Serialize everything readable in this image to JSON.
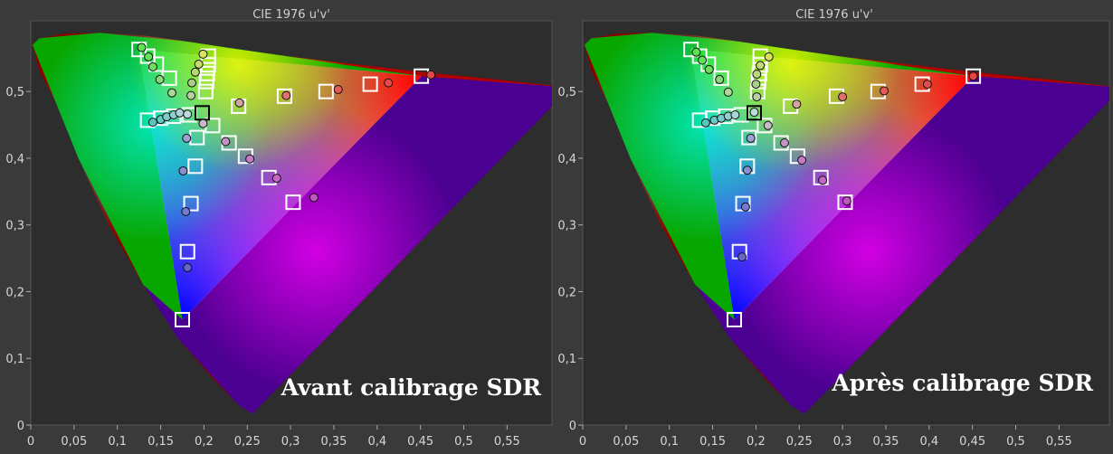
{
  "colors": {
    "background": "#3a3a3a",
    "plot_background": "#2d2d2d",
    "text": "#d6d6d6",
    "target_marker": "#ffffff",
    "white_point_marker": "#000000",
    "red": "#ff0000",
    "green": "#00cc00",
    "blue": "#0000ff",
    "magenta": "#ff00ff",
    "cyan": "#00ffff",
    "yellow": "#ffff00"
  },
  "chart_data": [
    {
      "type": "scatter",
      "title": "CIE 1976 u'v'",
      "overlay_label": "Avant calibrage SDR",
      "xlim": [
        0,
        0.6
      ],
      "ylim": [
        0,
        0.6
      ],
      "x_ticks": [
        0,
        0.05,
        0.1,
        0.15,
        0.2,
        0.25,
        0.3,
        0.35,
        0.4,
        0.45,
        0.5,
        0.55
      ],
      "x_tick_labels": [
        "0",
        "0,05",
        "0,1",
        "0,15",
        "0,2",
        "0,25",
        "0,3",
        "0,35",
        "0,4",
        "0,45",
        "0,5",
        "0,55"
      ],
      "y_ticks": [
        0,
        0.1,
        0.2,
        0.3,
        0.4,
        0.5
      ],
      "y_tick_labels": [
        "0",
        "0,1",
        "0,2",
        "0,3",
        "0,4",
        "0,5"
      ],
      "grid": false,
      "gamut_triangle": {
        "red": [
          0.451,
          0.523
        ],
        "green": [
          0.125,
          0.563
        ],
        "blue": [
          0.175,
          0.158
        ]
      },
      "white_point": [
        0.198,
        0.468
      ],
      "targets": [
        [
          0.125,
          0.563
        ],
        [
          0.135,
          0.553
        ],
        [
          0.145,
          0.541
        ],
        [
          0.16,
          0.52
        ],
        [
          0.205,
          0.553
        ],
        [
          0.205,
          0.54
        ],
        [
          0.204,
          0.527
        ],
        [
          0.203,
          0.515
        ],
        [
          0.202,
          0.5
        ],
        [
          0.24,
          0.478
        ],
        [
          0.293,
          0.493
        ],
        [
          0.341,
          0.5
        ],
        [
          0.392,
          0.511
        ],
        [
          0.451,
          0.523
        ],
        [
          0.135,
          0.457
        ],
        [
          0.15,
          0.46
        ],
        [
          0.165,
          0.463
        ],
        [
          0.183,
          0.465
        ],
        [
          0.21,
          0.449
        ],
        [
          0.229,
          0.423
        ],
        [
          0.248,
          0.403
        ],
        [
          0.275,
          0.371
        ],
        [
          0.303,
          0.334
        ],
        [
          0.192,
          0.431
        ],
        [
          0.19,
          0.388
        ],
        [
          0.185,
          0.332
        ],
        [
          0.181,
          0.26
        ],
        [
          0.175,
          0.158
        ]
      ],
      "measured": [
        {
          "x": 0.128,
          "y": 0.566,
          "color": "#5de34f"
        },
        {
          "x": 0.136,
          "y": 0.552,
          "color": "#62e258"
        },
        {
          "x": 0.141,
          "y": 0.537,
          "color": "#6fdc62"
        },
        {
          "x": 0.149,
          "y": 0.518,
          "color": "#86d87c"
        },
        {
          "x": 0.199,
          "y": 0.556,
          "color": "#d8e55b"
        },
        {
          "x": 0.194,
          "y": 0.541,
          "color": "#c4dc6e"
        },
        {
          "x": 0.19,
          "y": 0.529,
          "color": "#b6d677"
        },
        {
          "x": 0.186,
          "y": 0.513,
          "color": "#a9cd85"
        },
        {
          "x": 0.185,
          "y": 0.494,
          "color": "#b9cfa3"
        },
        {
          "x": 0.163,
          "y": 0.498,
          "color": "#a8d992"
        },
        {
          "x": 0.241,
          "y": 0.483,
          "color": "#d4a59a"
        },
        {
          "x": 0.295,
          "y": 0.494,
          "color": "#e0716f"
        },
        {
          "x": 0.355,
          "y": 0.503,
          "color": "#e45a59"
        },
        {
          "x": 0.413,
          "y": 0.513,
          "color": "#e24c4c"
        },
        {
          "x": 0.462,
          "y": 0.525,
          "color": "#e04747"
        },
        {
          "x": 0.141,
          "y": 0.454,
          "color": "#58c6bd"
        },
        {
          "x": 0.15,
          "y": 0.458,
          "color": "#6ac8c3"
        },
        {
          "x": 0.157,
          "y": 0.462,
          "color": "#7acbc8"
        },
        {
          "x": 0.165,
          "y": 0.465,
          "color": "#8ed0cf"
        },
        {
          "x": 0.172,
          "y": 0.468,
          "color": "#a6d6d5"
        },
        {
          "x": 0.181,
          "y": 0.466,
          "color": "#bcdbdb"
        },
        {
          "x": 0.199,
          "y": 0.452,
          "color": "#c8b9c8"
        },
        {
          "x": 0.225,
          "y": 0.425,
          "color": "#c691c6"
        },
        {
          "x": 0.253,
          "y": 0.399,
          "color": "#c77ac7"
        },
        {
          "x": 0.284,
          "y": 0.37,
          "color": "#c766c7"
        },
        {
          "x": 0.327,
          "y": 0.341,
          "color": "#c454c4"
        },
        {
          "x": 0.18,
          "y": 0.43,
          "color": "#9ca0d2"
        },
        {
          "x": 0.176,
          "y": 0.381,
          "color": "#8a8ed2"
        },
        {
          "x": 0.179,
          "y": 0.32,
          "color": "#7779cd"
        },
        {
          "x": 0.181,
          "y": 0.236,
          "color": "#6466c8"
        }
      ]
    },
    {
      "type": "scatter",
      "title": "CIE 1976 u'v'",
      "overlay_label": "Après calibrage SDR",
      "xlim": [
        0,
        0.6
      ],
      "ylim": [
        0,
        0.6
      ],
      "x_ticks": [
        0,
        0.05,
        0.1,
        0.15,
        0.2,
        0.25,
        0.3,
        0.35,
        0.4,
        0.45,
        0.5,
        0.55
      ],
      "x_tick_labels": [
        "0",
        "0,05",
        "0,1",
        "0,15",
        "0,2",
        "0,25",
        "0,3",
        "0,35",
        "0,4",
        "0,45",
        "0,5",
        "0,55"
      ],
      "y_ticks": [
        0,
        0.1,
        0.2,
        0.3,
        0.4,
        0.5
      ],
      "y_tick_labels": [
        "0",
        "0,1",
        "0,2",
        "0,3",
        "0,4",
        "0,5"
      ],
      "grid": false,
      "gamut_triangle": {
        "red": [
          0.451,
          0.523
        ],
        "green": [
          0.125,
          0.563
        ],
        "blue": [
          0.175,
          0.158
        ]
      },
      "white_point": [
        0.198,
        0.468
      ],
      "targets": [
        [
          0.125,
          0.563
        ],
        [
          0.135,
          0.553
        ],
        [
          0.145,
          0.541
        ],
        [
          0.16,
          0.52
        ],
        [
          0.205,
          0.553
        ],
        [
          0.205,
          0.54
        ],
        [
          0.204,
          0.527
        ],
        [
          0.203,
          0.515
        ],
        [
          0.202,
          0.5
        ],
        [
          0.24,
          0.478
        ],
        [
          0.293,
          0.493
        ],
        [
          0.341,
          0.5
        ],
        [
          0.392,
          0.511
        ],
        [
          0.451,
          0.523
        ],
        [
          0.135,
          0.457
        ],
        [
          0.15,
          0.46
        ],
        [
          0.165,
          0.463
        ],
        [
          0.183,
          0.465
        ],
        [
          0.21,
          0.449
        ],
        [
          0.229,
          0.423
        ],
        [
          0.248,
          0.403
        ],
        [
          0.275,
          0.371
        ],
        [
          0.303,
          0.334
        ],
        [
          0.192,
          0.431
        ],
        [
          0.19,
          0.388
        ],
        [
          0.185,
          0.332
        ],
        [
          0.181,
          0.26
        ],
        [
          0.175,
          0.158
        ]
      ],
      "measured": [
        {
          "x": 0.131,
          "y": 0.559,
          "color": "#5de34f"
        },
        {
          "x": 0.138,
          "y": 0.547,
          "color": "#62e258"
        },
        {
          "x": 0.146,
          "y": 0.533,
          "color": "#6fdc62"
        },
        {
          "x": 0.158,
          "y": 0.518,
          "color": "#86d87c"
        },
        {
          "x": 0.215,
          "y": 0.552,
          "color": "#d8e55b"
        },
        {
          "x": 0.205,
          "y": 0.539,
          "color": "#c4dc6e"
        },
        {
          "x": 0.201,
          "y": 0.526,
          "color": "#b6d677"
        },
        {
          "x": 0.2,
          "y": 0.511,
          "color": "#a9cd85"
        },
        {
          "x": 0.201,
          "y": 0.492,
          "color": "#b9cfa3"
        },
        {
          "x": 0.168,
          "y": 0.499,
          "color": "#a8d992"
        },
        {
          "x": 0.247,
          "y": 0.481,
          "color": "#d4a59a"
        },
        {
          "x": 0.3,
          "y": 0.492,
          "color": "#e0716f"
        },
        {
          "x": 0.348,
          "y": 0.501,
          "color": "#e45a59"
        },
        {
          "x": 0.398,
          "y": 0.511,
          "color": "#e24c4c"
        },
        {
          "x": 0.451,
          "y": 0.523,
          "color": "#e04747"
        },
        {
          "x": 0.142,
          "y": 0.453,
          "color": "#58c6bd"
        },
        {
          "x": 0.152,
          "y": 0.457,
          "color": "#6ac8c3"
        },
        {
          "x": 0.16,
          "y": 0.46,
          "color": "#7acbc8"
        },
        {
          "x": 0.168,
          "y": 0.463,
          "color": "#8ed0cf"
        },
        {
          "x": 0.176,
          "y": 0.465,
          "color": "#a6d6d5"
        },
        {
          "x": 0.198,
          "y": 0.469,
          "color": "#bcdbdb"
        },
        {
          "x": 0.214,
          "y": 0.449,
          "color": "#c8b9c8"
        },
        {
          "x": 0.233,
          "y": 0.423,
          "color": "#c691c6"
        },
        {
          "x": 0.253,
          "y": 0.397,
          "color": "#c77ac7"
        },
        {
          "x": 0.277,
          "y": 0.367,
          "color": "#c766c7"
        },
        {
          "x": 0.305,
          "y": 0.336,
          "color": "#c454c4"
        },
        {
          "x": 0.194,
          "y": 0.43,
          "color": "#9ca0d2"
        },
        {
          "x": 0.19,
          "y": 0.382,
          "color": "#8a8ed2"
        },
        {
          "x": 0.188,
          "y": 0.327,
          "color": "#7779cd"
        },
        {
          "x": 0.184,
          "y": 0.252,
          "color": "#6466c8"
        }
      ]
    }
  ]
}
